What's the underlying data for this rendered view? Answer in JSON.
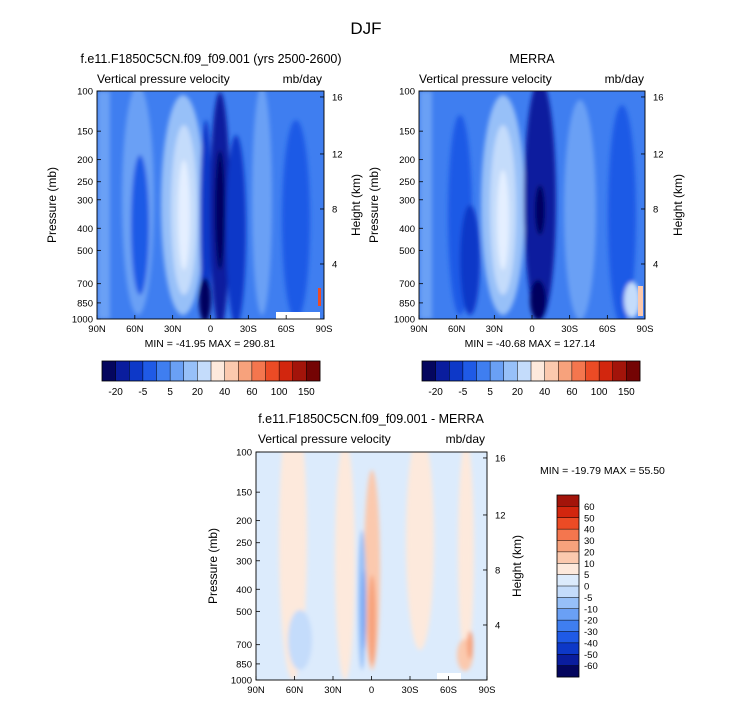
{
  "figure_title": "DJF",
  "colors": {
    "main_scale": [
      "#04065e",
      "#0a1d9e",
      "#0d38c8",
      "#1f5ae6",
      "#3f7ef0",
      "#6aa0f5",
      "#97c0f8",
      "#c4dcfb",
      "#fde9dc",
      "#fbc9ae",
      "#f7a27c",
      "#f4764e",
      "#ec4b25",
      "#d2260e",
      "#a3140a",
      "#740404"
    ],
    "diff_scale": [
      "#04065e",
      "#0a1d9e",
      "#0d38c8",
      "#1f5ae6",
      "#3f7ef0",
      "#6aa0f5",
      "#97c0f8",
      "#c4dcfb",
      "#dcebfc",
      "#fde9dc",
      "#fbc9ae",
      "#f7a27c",
      "#f4764e",
      "#ec4b25",
      "#d2260e",
      "#a3140a"
    ]
  },
  "chart_data": [
    {
      "type": "heatmap",
      "title": "f.e11.F1850C5CN.f09_f09.001 (yrs 2500-2600)",
      "subtitle_left": "Vertical pressure velocity",
      "subtitle_right": "mb/day",
      "xlabel": "",
      "ylabel": "Pressure (mb)",
      "ylabel_right": "Height (km)",
      "x_ticks": [
        "90N",
        "60N",
        "30N",
        "0",
        "30S",
        "60S",
        "90S"
      ],
      "y_ticks": [
        "100",
        "150",
        "200",
        "250",
        "300",
        "400",
        "500",
        "700",
        "850",
        "1000"
      ],
      "y_ticks_right": [
        "16",
        "12",
        "8",
        "4"
      ],
      "ylim": [
        100,
        1000
      ],
      "stats": "MIN = -41.95  MAX = 290.81"
    },
    {
      "type": "heatmap",
      "title": "MERRA",
      "subtitle_left": "Vertical pressure velocity",
      "subtitle_right": "mb/day",
      "xlabel": "",
      "ylabel": "Pressure (mb)",
      "ylabel_right": "Height (km)",
      "x_ticks": [
        "90N",
        "60N",
        "30N",
        "0",
        "30S",
        "60S",
        "90S"
      ],
      "y_ticks": [
        "100",
        "150",
        "200",
        "250",
        "300",
        "400",
        "500",
        "700",
        "850",
        "1000"
      ],
      "y_ticks_right": [
        "16",
        "12",
        "8",
        "4"
      ],
      "ylim": [
        100,
        1000
      ],
      "stats": "MIN = -40.68  MAX = 127.14"
    },
    {
      "type": "heatmap",
      "title": "f.e11.F1850C5CN.f09_f09.001 - MERRA",
      "subtitle_left": "Vertical pressure velocity",
      "subtitle_right": "mb/day",
      "xlabel": "",
      "ylabel": "Pressure (mb)",
      "ylabel_right": "Height (km)",
      "x_ticks": [
        "90N",
        "60N",
        "30N",
        "0",
        "30S",
        "60S",
        "90S"
      ],
      "y_ticks": [
        "100",
        "150",
        "200",
        "250",
        "300",
        "400",
        "500",
        "700",
        "850",
        "1000"
      ],
      "y_ticks_right": [
        "16",
        "12",
        "8",
        "4"
      ],
      "ylim": [
        100,
        1000
      ],
      "stats": "MIN = -19.79  MAX = 55.50"
    }
  ],
  "colorbars": {
    "main_labels": [
      "-20",
      "-5",
      "5",
      "20",
      "40",
      "60",
      "100",
      "150"
    ],
    "diff_labels": [
      "60",
      "50",
      "40",
      "30",
      "20",
      "10",
      "5",
      "0",
      "-5",
      "-10",
      "-20",
      "-30",
      "-40",
      "-50",
      "-60"
    ]
  }
}
